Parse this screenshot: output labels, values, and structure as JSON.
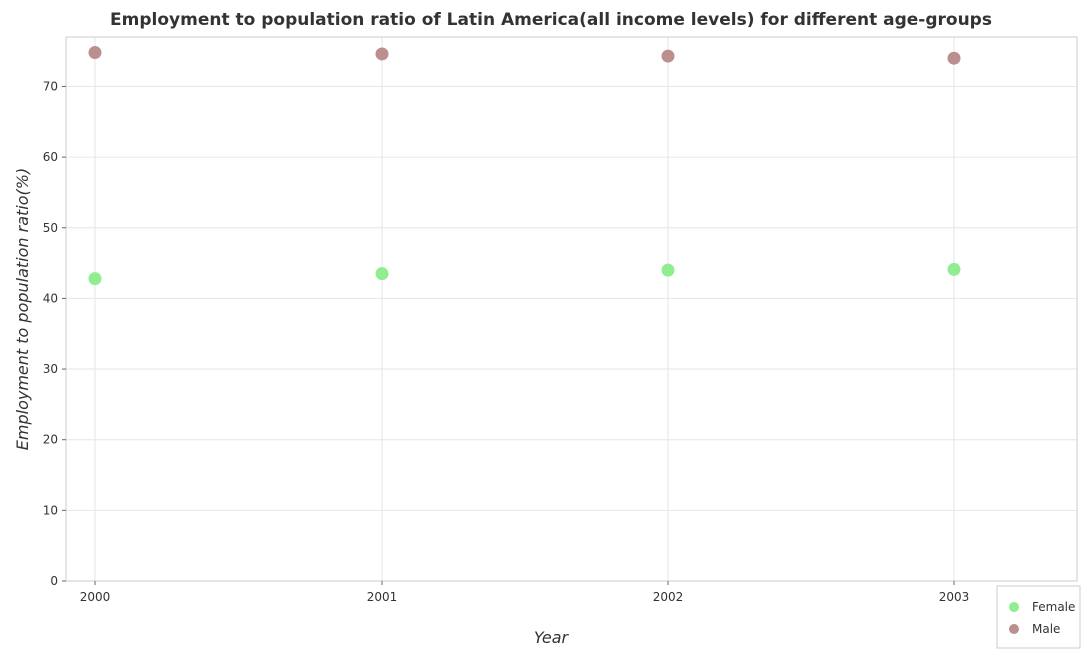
{
  "chart_data": {
    "type": "scatter",
    "title": "Employment to population ratio of Latin America(all income levels) for different age-groups",
    "xlabel": "Year",
    "ylabel": "Employment to population ratio(%)",
    "categories": [
      "2000",
      "2001",
      "2002",
      "2003"
    ],
    "ylim": [
      0,
      77
    ],
    "yticks": [
      0,
      10,
      20,
      30,
      40,
      50,
      60,
      70
    ],
    "grid": true,
    "legend_position": "bottom-right",
    "series": [
      {
        "name": "Female",
        "color": "#90ee90",
        "values": [
          42.8,
          43.5,
          44.0,
          44.1
        ]
      },
      {
        "name": "Male",
        "color": "#bc8f8f",
        "values": [
          74.8,
          74.6,
          74.3,
          74.0
        ]
      }
    ]
  }
}
